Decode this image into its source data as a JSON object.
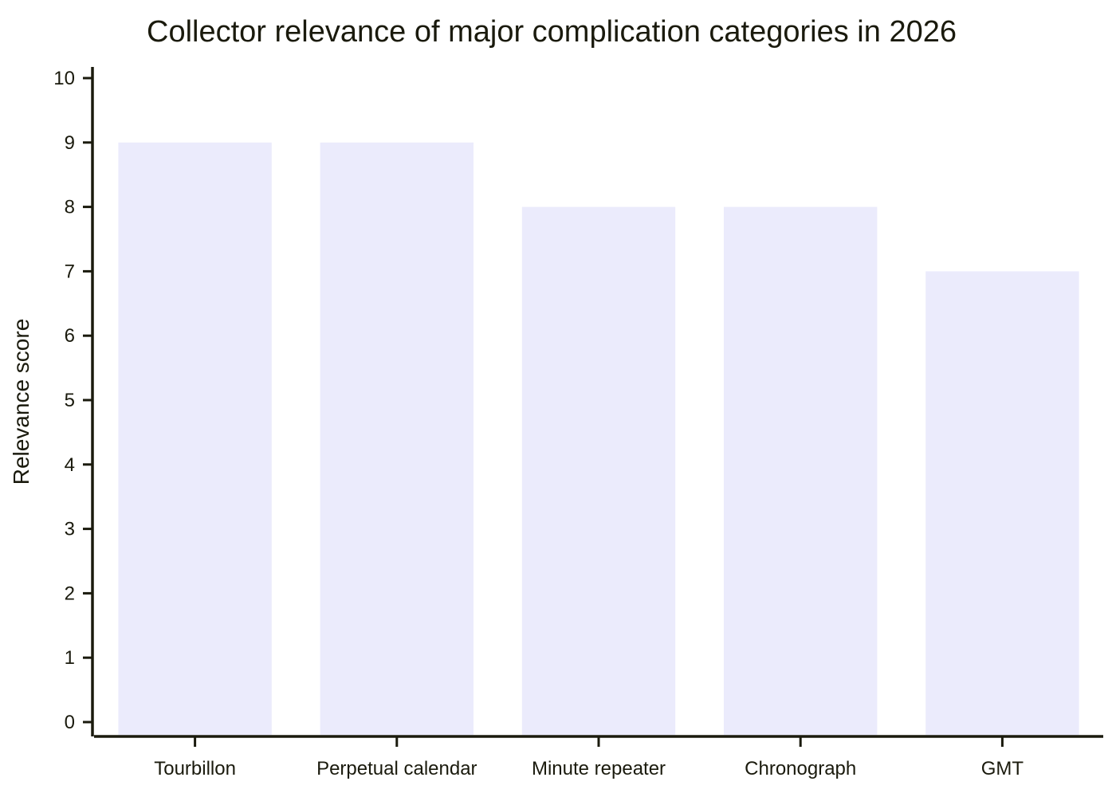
{
  "chart_data": {
    "type": "bar",
    "title": "Collector relevance of major complication categories in 2026",
    "xlabel": "",
    "ylabel": "Relevance score",
    "categories": [
      "Tourbillon",
      "Perpetual calendar",
      "Minute repeater",
      "Chronograph",
      "GMT"
    ],
    "values": [
      9,
      9,
      8,
      8,
      7
    ],
    "ylim": [
      0,
      10
    ],
    "yticks": [
      0,
      1,
      2,
      3,
      4,
      5,
      6,
      7,
      8,
      9,
      10
    ],
    "bar_color": "#ebebfc",
    "axis_color": "#1a1a0d",
    "grid": false,
    "legend": "none"
  }
}
